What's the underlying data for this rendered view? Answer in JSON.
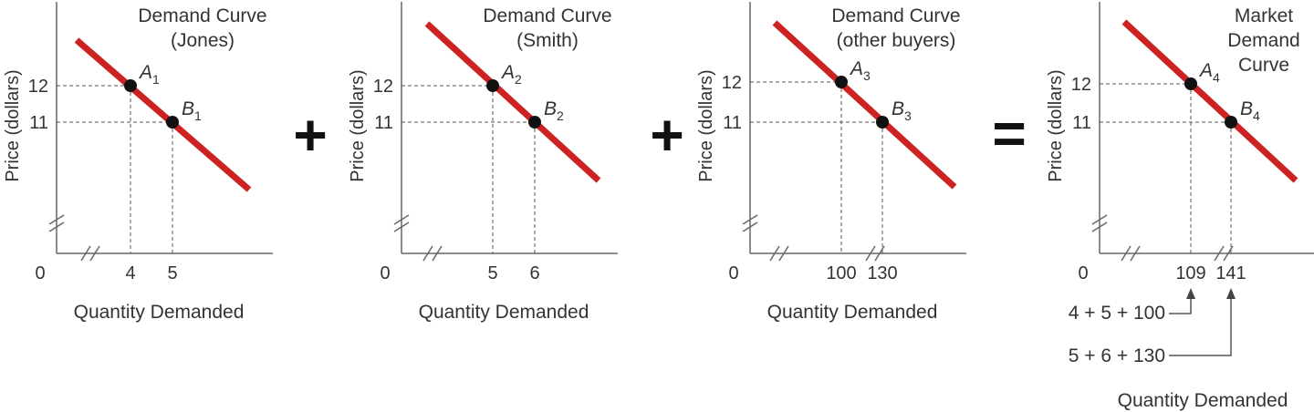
{
  "chart_data": [
    {
      "type": "line",
      "title": [
        "Demand Curve",
        "(Jones)"
      ],
      "ylabel": "Price (dollars)",
      "xlabel": "Quantity Demanded",
      "origin_label": "0",
      "x_ticks": [
        "4",
        "5"
      ],
      "y_ticks": [
        "12",
        "11"
      ],
      "points": [
        {
          "name": "A",
          "sub": "1",
          "price": 12,
          "quantity": 4
        },
        {
          "name": "B",
          "sub": "1",
          "price": 11,
          "quantity": 5
        }
      ]
    },
    {
      "type": "line",
      "title": [
        "Demand Curve",
        "(Smith)"
      ],
      "ylabel": "Price (dollars)",
      "xlabel": "Quantity Demanded",
      "origin_label": "0",
      "x_ticks": [
        "5",
        "6"
      ],
      "y_ticks": [
        "12",
        "11"
      ],
      "points": [
        {
          "name": "A",
          "sub": "2",
          "price": 12,
          "quantity": 5
        },
        {
          "name": "B",
          "sub": "2",
          "price": 11,
          "quantity": 6
        }
      ]
    },
    {
      "type": "line",
      "title": [
        "Demand Curve",
        "(other buyers)"
      ],
      "ylabel": "Price (dollars)",
      "xlabel": "Quantity Demanded",
      "origin_label": "0",
      "x_ticks": [
        "100",
        "130"
      ],
      "y_ticks": [
        "12",
        "11"
      ],
      "points": [
        {
          "name": "A",
          "sub": "3",
          "price": 12,
          "quantity": 100
        },
        {
          "name": "B",
          "sub": "3",
          "price": 11,
          "quantity": 130
        }
      ]
    },
    {
      "type": "line",
      "title": [
        "Market",
        "Demand",
        "Curve"
      ],
      "ylabel": "Price (dollars)",
      "xlabel": "Quantity Demanded",
      "origin_label": "0",
      "x_ticks": [
        "109",
        "141"
      ],
      "y_ticks": [
        "12",
        "11"
      ],
      "points": [
        {
          "name": "A",
          "sub": "4",
          "price": 12,
          "quantity": 109
        },
        {
          "name": "B",
          "sub": "4",
          "price": 11,
          "quantity": 141
        }
      ],
      "sum_annotations": [
        "4 + 5 + 100",
        "5 + 6 + 130"
      ]
    }
  ],
  "operators": [
    "+",
    "+",
    "="
  ],
  "colors": {
    "curve": "#cc2222",
    "axis": "#666666",
    "dot": "#111111"
  }
}
